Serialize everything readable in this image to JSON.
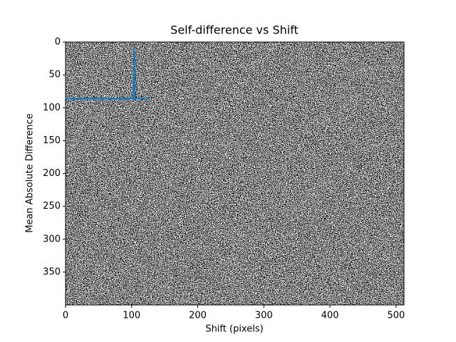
{
  "chart_data": {
    "type": "line",
    "title": "Self-difference vs Shift",
    "xlabel": "Shift (pixels)",
    "ylabel": "Mean Absolute Difference",
    "x": [
      0,
      103,
      104,
      105,
      127
    ],
    "values": [
      86,
      86,
      10,
      86,
      86
    ],
    "color": "#1f77b4",
    "xlim": [
      0,
      512
    ],
    "ylim": [
      400,
      0
    ],
    "xticks": [
      0,
      100,
      200,
      300,
      400,
      500
    ],
    "yticks": [
      0,
      50,
      100,
      150,
      200,
      250,
      300,
      350
    ]
  }
}
